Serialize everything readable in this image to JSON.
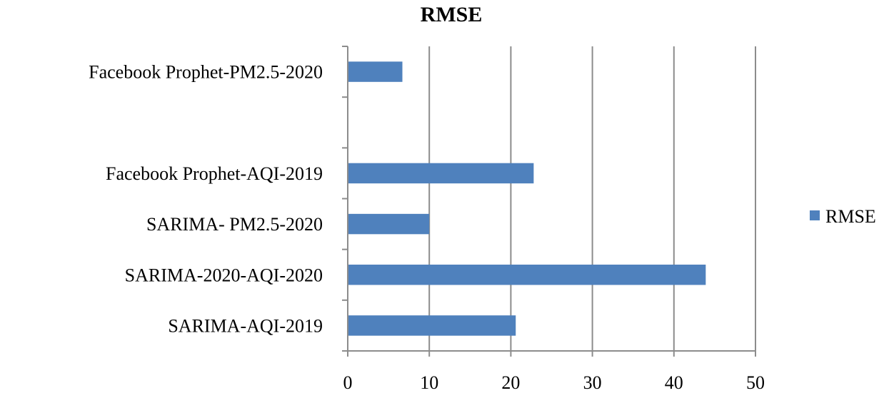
{
  "chart_data": {
    "type": "bar",
    "orientation": "horizontal",
    "title": "RMSE",
    "xlabel": "",
    "ylabel": "",
    "categories": [
      "SARIMA-AQI-2019",
      "SARIMA-2020-AQI-2020",
      "SARIMA- PM2.5-2020",
      "Facebook Prophet-AQI-2019",
      "",
      "Facebook Prophet-PM2.5-2020"
    ],
    "series": [
      {
        "name": "RMSE",
        "color": "#4f81bd",
        "values": [
          20.6,
          43.9,
          10.0,
          22.8,
          null,
          6.7
        ]
      }
    ],
    "xlim": [
      0,
      50
    ],
    "xticks": [
      0,
      10,
      20,
      30,
      40,
      50
    ],
    "grid": "vertical",
    "legend": "right"
  }
}
